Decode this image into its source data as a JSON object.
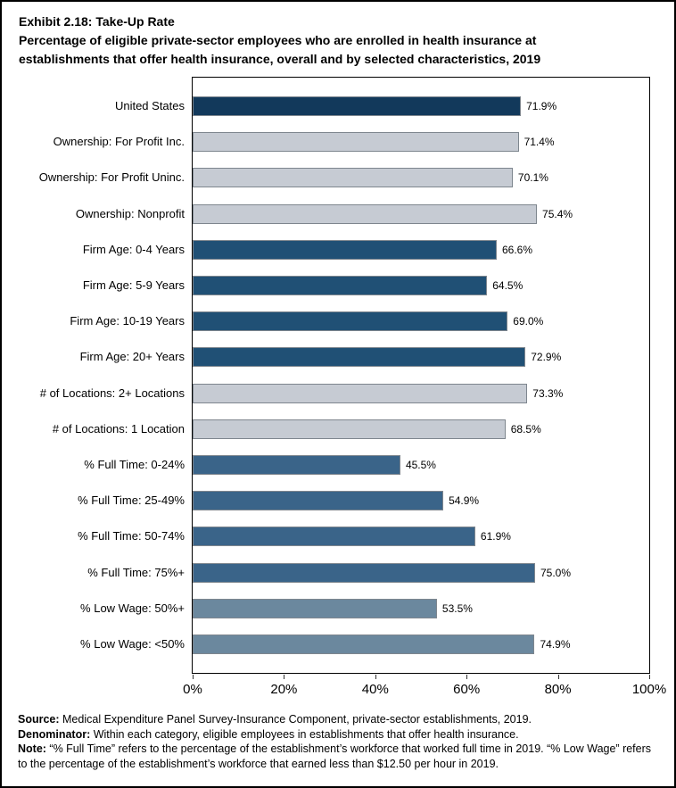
{
  "title": {
    "exhibit": "Exhibit 2.18: Take-Up Rate",
    "subtitle_line1": "Percentage of eligible private-sector employees who are enrolled in health insurance at",
    "subtitle_line2": "establishments that offer health insurance, overall and by selected characteristics, 2019"
  },
  "chart_data": {
    "type": "bar",
    "orientation": "horizontal",
    "title": "Exhibit 2.18: Take-Up Rate",
    "subtitle": "Percentage of eligible private-sector employees who are enrolled in health insurance at establishments that offer health insurance, overall and by selected characteristics, 2019",
    "categories": [
      "United States",
      "Ownership: For Profit Inc.",
      "Ownership: For Profit Uninc.",
      "Ownership: Nonprofit",
      "Firm Age: 0-4 Years",
      "Firm Age: 5-9 Years",
      "Firm Age: 10-19 Years",
      "Firm Age: 20+ Years",
      "# of Locations: 2+ Locations",
      "# of Locations: 1 Location",
      "% Full Time: 0-24%",
      "% Full Time: 25-49%",
      "% Full Time: 50-74%",
      "% Full Time: 75%+",
      "% Low Wage: 50%+",
      "% Low Wage: <50%"
    ],
    "values": [
      71.9,
      71.4,
      70.1,
      75.4,
      66.6,
      64.5,
      69.0,
      72.9,
      73.3,
      68.5,
      45.5,
      54.9,
      61.9,
      75.0,
      53.5,
      74.9
    ],
    "value_labels": [
      "71.9%",
      "71.4%",
      "70.1%",
      "75.4%",
      "66.6%",
      "64.5%",
      "69.0%",
      "72.9%",
      "73.3%",
      "68.5%",
      "45.5%",
      "54.9%",
      "61.9%",
      "75.0%",
      "53.5%",
      "74.9%"
    ],
    "bar_colors": [
      "#12395B",
      "#C6CBD3",
      "#C6CBD3",
      "#C6CBD3",
      "#205075",
      "#205075",
      "#205075",
      "#205075",
      "#C6CBD3",
      "#C6CBD3",
      "#3A6489",
      "#3A6489",
      "#3A6489",
      "#3A6489",
      "#6B889E",
      "#6B889E"
    ],
    "bar_border_color": "#7E868E",
    "xlabel": "",
    "ylabel": "",
    "xlim": [
      0,
      100
    ],
    "x_ticks": [
      "0%",
      "20%",
      "40%",
      "60%",
      "80%",
      "100%"
    ],
    "x_tick_values": [
      0,
      20,
      40,
      60,
      80,
      100
    ],
    "grid": false,
    "legend": false,
    "plot_border": true
  },
  "footer": {
    "source_label": "Source:",
    "source_text": " Medical Expenditure Panel Survey-Insurance Component, private-sector establishments, 2019.",
    "denominator_label": "Denominator:",
    "denominator_text": " Within each category, eligible employees in establishments that offer health insurance.",
    "note_label": "Note:",
    "note_text": " “% Full Time” refers to the percentage of the establishment’s workforce that worked full time in 2019. “% Low Wage” refers to the percentage of the establishment’s workforce that earned less than $12.50 per hour in 2019."
  }
}
